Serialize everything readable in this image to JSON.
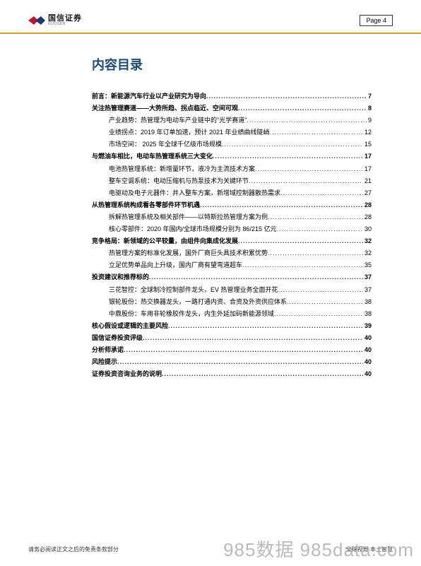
{
  "header": {
    "logo_cn": "国信证券",
    "logo_en": "GUOSEN",
    "page_label": "Page  4"
  },
  "toc": {
    "title": "内容目录",
    "items": [
      {
        "level": 1,
        "label": "前言：新能源汽车行业以产业研究为导向",
        "page": "7"
      },
      {
        "level": 1,
        "label": "关注热管理赛道——大势所趋、拐点临近、空间可观",
        "page": "8"
      },
      {
        "level": 2,
        "label": "产业趋势：热管理为电动车产业链中的\"光学赛道\"",
        "page": "9"
      },
      {
        "level": 2,
        "label": "业绩拐点：2019 年订单加速，预计 2021 年业绩曲线陡峭",
        "page": "12"
      },
      {
        "level": 2,
        "label": "市场空间：  2025 年全球千亿级市场规模",
        "page": "15"
      },
      {
        "level": 1,
        "label": "与燃油车相比，电动车热管理系统三大变化",
        "page": "17"
      },
      {
        "level": 2,
        "label": "电池热管理系统：新增量环节，液冷为主流技术方案",
        "page": "17"
      },
      {
        "level": 2,
        "label": "整车空调系统：电动压缩机与热泵技术为关键环节",
        "page": "21"
      },
      {
        "level": 2,
        "label": "电驱动及电子元器件：并入整车方案，新增域控制器散热需求",
        "page": "27"
      },
      {
        "level": 1,
        "label": "从热管理系统构成看各零部件环节机遇",
        "page": "28"
      },
      {
        "level": 2,
        "label": "拆解热管理系统及相关部件——以特斯拉热管理方案为例",
        "page": "28"
      },
      {
        "level": 2,
        "label": "核心零部件：2020 年国内/全球市场规模分别为 86/215 亿元",
        "page": "30"
      },
      {
        "level": 1,
        "label": "竞争格局：新领域的公平较量，由组件向集成化发展",
        "page": "32"
      },
      {
        "level": 2,
        "label": "热管理方案的标准化发展，国外厂商巨头具技术积累优势",
        "page": "32"
      },
      {
        "level": 2,
        "label": "立足优势单品向上升级，国内厂商有望弯道超车",
        "page": "35"
      },
      {
        "level": 1,
        "label": "投资建议和推荐标的",
        "page": "37"
      },
      {
        "level": 2,
        "label": "三花智控：全球制冷控制部件龙头，EV 热管理业务全面开花",
        "page": "37"
      },
      {
        "level": 2,
        "label": "银轮股份：热交换器龙头，一路打通内资、合资及外资供应体系",
        "page": "38"
      },
      {
        "level": 2,
        "label": "中鼎股份：车用非轮橡胶件龙头，内生外延加码新能源领域",
        "page": "38"
      },
      {
        "level": 1,
        "label": "核心假设或逻辑的主要风险",
        "page": "39"
      },
      {
        "level": 1,
        "label": "国信证券投资评级",
        "page": "40"
      },
      {
        "level": 1,
        "label": "分析师承诺",
        "page": "40"
      },
      {
        "level": 1,
        "label": "风险提示",
        "page": "40"
      },
      {
        "level": 1,
        "label": "证券投资咨询业务的说明",
        "page": "40"
      }
    ]
  },
  "footer": {
    "left": "请务必阅读正文之后的免责条款部分",
    "right": "全球视野  本土智慧"
  },
  "watermark": "985数据 985data.com",
  "colors": {
    "header_border": "#d4a03a",
    "title_color": "#1a4b7a",
    "logo_red": "#c8102e",
    "logo_blue": "#1a3a6e"
  }
}
